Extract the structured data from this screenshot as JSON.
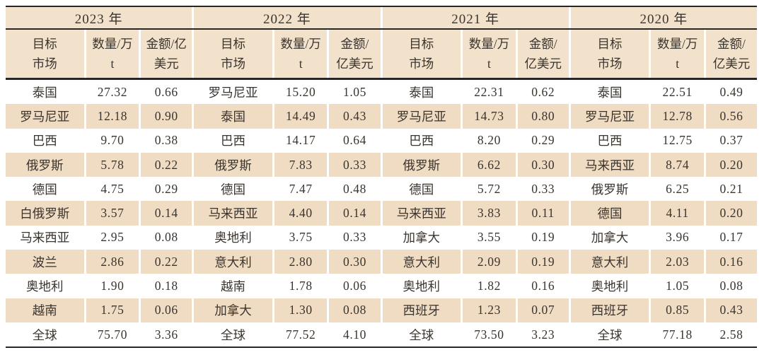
{
  "colors": {
    "stripe": "#f0dcc3",
    "header": "#f2e2cb",
    "line": "#262626",
    "text": "#3a342e"
  },
  "chart_data": {
    "type": "table",
    "description_columns": [
      "目标市场",
      "数量/万t",
      "金额/亿美元"
    ],
    "groups": [
      {
        "year": "2023 年",
        "columns": [
          "目标\n市场",
          "数量/万\nt",
          "金额/亿\n美元"
        ],
        "rows": [
          [
            "泰国",
            "27.32",
            "0.66"
          ],
          [
            "罗马尼亚",
            "12.18",
            "0.90"
          ],
          [
            "巴西",
            "9.70",
            "0.38"
          ],
          [
            "俄罗斯",
            "5.78",
            "0.22"
          ],
          [
            "德国",
            "4.75",
            "0.29"
          ],
          [
            "白俄罗斯",
            "3.57",
            "0.14"
          ],
          [
            "马来西亚",
            "2.95",
            "0.08"
          ],
          [
            "波兰",
            "2.86",
            "0.22"
          ],
          [
            "奥地利",
            "1.90",
            "0.18"
          ],
          [
            "越南",
            "1.75",
            "0.06"
          ],
          [
            "全球",
            "75.70",
            "3.36"
          ]
        ]
      },
      {
        "year": "2022 年",
        "columns": [
          "目标\n市场",
          "数量/万\nt",
          "金额/\n亿美元"
        ],
        "rows": [
          [
            "罗马尼亚",
            "15.20",
            "1.05"
          ],
          [
            "泰国",
            "14.49",
            "0.43"
          ],
          [
            "巴西",
            "14.17",
            "0.64"
          ],
          [
            "俄罗斯",
            "7.83",
            "0.33"
          ],
          [
            "德国",
            "7.47",
            "0.48"
          ],
          [
            "马来西亚",
            "4.40",
            "0.14"
          ],
          [
            "奥地利",
            "3.75",
            "0.33"
          ],
          [
            "意大利",
            "2.80",
            "0.30"
          ],
          [
            "越南",
            "1.78",
            "0.06"
          ],
          [
            "加拿大",
            "1.30",
            "0.08"
          ],
          [
            "全球",
            "77.52",
            "4.10"
          ]
        ]
      },
      {
        "year": "2021 年",
        "columns": [
          "目标\n市场",
          "数量/万\nt",
          "金额/\n亿美元"
        ],
        "rows": [
          [
            "泰国",
            "22.31",
            "0.62"
          ],
          [
            "罗马尼亚",
            "14.73",
            "0.80"
          ],
          [
            "巴西",
            "8.20",
            "0.29"
          ],
          [
            "俄罗斯",
            "6.62",
            "0.30"
          ],
          [
            "德国",
            "5.72",
            "0.33"
          ],
          [
            "马来西亚",
            "3.83",
            "0.11"
          ],
          [
            "加拿大",
            "3.55",
            "0.19"
          ],
          [
            "意大利",
            "2.09",
            "0.19"
          ],
          [
            "奥地利",
            "1.82",
            "0.16"
          ],
          [
            "西班牙",
            "1.23",
            "0.07"
          ],
          [
            "全球",
            "73.50",
            "3.23"
          ]
        ]
      },
      {
        "year": "2020 年",
        "columns": [
          "目标\n市场",
          "数量/万\nt",
          "金额/\n亿美元"
        ],
        "rows": [
          [
            "泰国",
            "22.51",
            "0.49"
          ],
          [
            "罗马尼亚",
            "12.78",
            "0.56"
          ],
          [
            "巴西",
            "12.75",
            "0.37"
          ],
          [
            "马来西亚",
            "8.74",
            "0.20"
          ],
          [
            "俄罗斯",
            "6.25",
            "0.21"
          ],
          [
            "德国",
            "4.11",
            "0.20"
          ],
          [
            "加拿大",
            "3.96",
            "0.17"
          ],
          [
            "意大利",
            "2.03",
            "0.16"
          ],
          [
            "奥地利",
            "1.05",
            "0.08"
          ],
          [
            "西班牙",
            "0.85",
            "0.43"
          ],
          [
            "全球",
            "77.18",
            "2.58"
          ]
        ]
      }
    ]
  }
}
